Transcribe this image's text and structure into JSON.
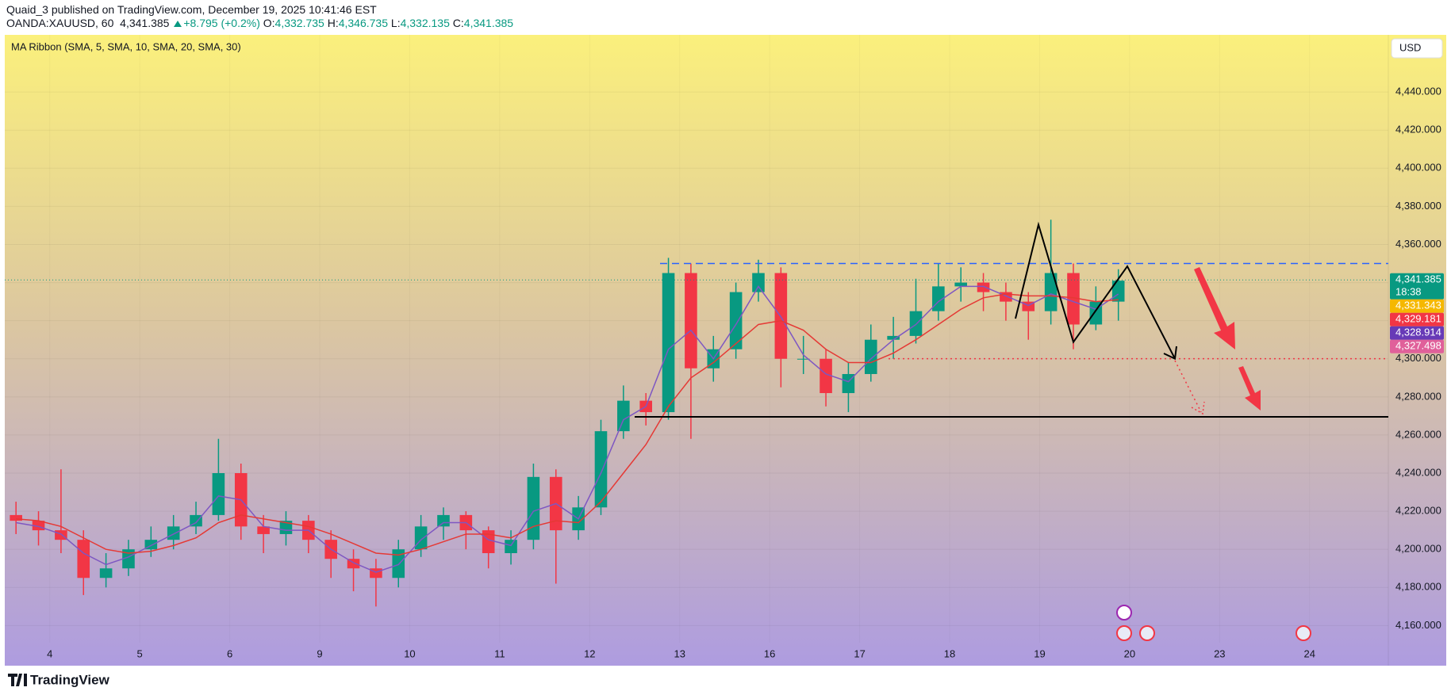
{
  "header": {
    "publisher": "Quaid_3 published on TradingView.com, December 19, 2025 10:41:46 EST",
    "symbol": "OANDA:XAUUSD, 60",
    "last": "4,341.385",
    "change": "+8.795 (+0.2%)",
    "o_label": "O:",
    "open": "4,332.735",
    "h_label": "H:",
    "high": "4,346.735",
    "l_label": "L:",
    "low": "4,332.135",
    "c_label": "C:",
    "close": "4,341.385"
  },
  "indicator": "MA Ribbon (SMA, 5, SMA, 10, SMA, 20, SMA, 30)",
  "currency": "USD",
  "countdown": "18:38",
  "brand": "TradingView",
  "chart_data": {
    "type": "candlestick",
    "x": [
      -9,
      -3,
      3,
      9,
      15,
      21,
      27,
      33,
      39,
      45,
      51,
      57,
      63,
      69,
      75,
      81,
      87,
      93,
      99,
      105,
      111,
      117,
      123,
      129,
      135,
      141,
      147,
      153,
      159,
      165,
      171,
      177,
      183,
      189,
      195,
      201,
      207,
      213,
      219,
      225,
      231,
      237,
      243,
      249,
      255,
      261,
      267,
      273,
      279,
      285
    ],
    "open": [
      4218,
      4215,
      4210,
      4205,
      4185,
      4190,
      4200,
      4205,
      4212,
      4218,
      4240,
      4212,
      4208,
      4215,
      4205,
      4195,
      4190,
      4185,
      4200,
      4212,
      4218,
      4210,
      4198,
      4205,
      4238,
      4210,
      4222,
      4262,
      4278,
      4272,
      4345,
      4295,
      4305,
      4335,
      4345,
      4300,
      4300,
      4282,
      4292,
      4310,
      4312,
      4325,
      4338,
      4340,
      4335,
      4330,
      4325,
      4345,
      4318,
      4330
    ],
    "high": [
      4225,
      4220,
      4242,
      4210,
      4198,
      4205,
      4212,
      4218,
      4225,
      4258,
      4245,
      4218,
      4220,
      4218,
      4210,
      4200,
      4195,
      4205,
      4218,
      4222,
      4220,
      4212,
      4210,
      4245,
      4242,
      4228,
      4268,
      4286,
      4282,
      4353,
      4350,
      4312,
      4340,
      4352,
      4348,
      4312,
      4305,
      4298,
      4318,
      4322,
      4342,
      4350,
      4348,
      4345,
      4340,
      4335,
      4373,
      4350,
      4338,
      4347
    ],
    "low": [
      4208,
      4202,
      4198,
      4176,
      4180,
      4186,
      4196,
      4200,
      4208,
      4215,
      4205,
      4198,
      4202,
      4198,
      4185,
      4178,
      4170,
      4180,
      4196,
      4205,
      4200,
      4190,
      4192,
      4200,
      4182,
      4205,
      4218,
      4258,
      4265,
      4268,
      4258,
      4288,
      4300,
      4330,
      4285,
      4292,
      4275,
      4272,
      4288,
      4300,
      4308,
      4320,
      4330,
      4325,
      4320,
      4310,
      4318,
      4305,
      4315,
      4320
    ],
    "close": [
      4215,
      4210,
      4205,
      4185,
      4190,
      4200,
      4205,
      4212,
      4218,
      4240,
      4212,
      4208,
      4215,
      4205,
      4195,
      4190,
      4185,
      4200,
      4212,
      4218,
      4210,
      4198,
      4205,
      4238,
      4210,
      4222,
      4262,
      4278,
      4272,
      4345,
      4295,
      4305,
      4335,
      4345,
      4300,
      4300,
      4282,
      4292,
      4310,
      4312,
      4325,
      4338,
      4340,
      4335,
      4330,
      4325,
      4345,
      4318,
      4330,
      4341
    ],
    "up_color": "#089981",
    "down_color": "#f23645",
    "ma_lines": [
      {
        "color": "#7e57c2",
        "values": [
          4214,
          4212,
          4208,
          4198,
          4192,
          4196,
          4202,
          4208,
          4214,
          4228,
          4226,
          4212,
          4210,
          4210,
          4200,
          4193,
          4188,
          4192,
          4205,
          4214,
          4214,
          4205,
          4202,
          4220,
          4224,
          4216,
          4240,
          4268,
          4275,
          4305,
          4315,
          4300,
          4318,
          4338,
          4322,
          4302,
          4292,
          4288,
          4300,
          4310,
          4318,
          4330,
          4338,
          4338,
          4333,
          4328,
          4334,
          4330,
          4326,
          4334
        ]
      },
      {
        "color": "#e53935",
        "values": [
          4216,
          4215,
          4212,
          4206,
          4200,
          4198,
          4199,
          4202,
          4206,
          4214,
          4218,
          4216,
          4214,
          4212,
          4208,
          4203,
          4198,
          4197,
          4200,
          4204,
          4208,
          4208,
          4206,
          4212,
          4215,
          4214,
          4225,
          4240,
          4255,
          4275,
          4290,
          4298,
          4308,
          4318,
          4320,
          4315,
          4305,
          4298,
          4298,
          4303,
          4310,
          4318,
          4326,
          4332,
          4334,
          4333,
          4333,
          4332,
          4330,
          4331
        ]
      }
    ],
    "price_tags": [
      {
        "value": 4341.385,
        "label": "4,341.385",
        "color": "#089981"
      },
      {
        "value": 4331.343,
        "label": "4,331.343",
        "color": "#f5b800"
      },
      {
        "value": 4329.181,
        "label": "4,329.181",
        "color": "#f23645"
      },
      {
        "value": 4328.914,
        "label": "4,328.914",
        "color": "#673ab7"
      },
      {
        "value": 4327.498,
        "label": "4,327.498",
        "color": "#e0609a"
      }
    ],
    "xlim": [
      -12,
      357
    ],
    "ylim": [
      4151,
      4470
    ],
    "xticks": [
      {
        "value": 0,
        "label": "4"
      },
      {
        "value": 24,
        "label": "5"
      },
      {
        "value": 48,
        "label": "6"
      },
      {
        "value": 72,
        "label": "9"
      },
      {
        "value": 96,
        "label": "10"
      },
      {
        "value": 120,
        "label": "11"
      },
      {
        "value": 144,
        "label": "12"
      },
      {
        "value": 168,
        "label": "13"
      },
      {
        "value": 192,
        "label": "16"
      },
      {
        "value": 216,
        "label": "17"
      },
      {
        "value": 240,
        "label": "18"
      },
      {
        "value": 264,
        "label": "19"
      },
      {
        "value": 288,
        "label": "20"
      },
      {
        "value": 312,
        "label": "23"
      },
      {
        "value": 336,
        "label": "24"
      }
    ],
    "yticks": [
      {
        "value": 4160,
        "label": "4,160.000"
      },
      {
        "value": 4180,
        "label": "4,180.000"
      },
      {
        "value": 4200,
        "label": "4,200.000"
      },
      {
        "value": 4220,
        "label": "4,220.000"
      },
      {
        "value": 4240,
        "label": "4,240.000"
      },
      {
        "value": 4260,
        "label": "4,260.000"
      },
      {
        "value": 4280,
        "label": "4,280.000"
      },
      {
        "value": 4300,
        "label": "4,300.000"
      },
      {
        "value": 4320,
        "label": "4,320.000"
      },
      {
        "value": 4340,
        "label": "4,340.000"
      },
      {
        "value": 4360,
        "label": "4,360.000"
      },
      {
        "value": 4380,
        "label": "4,380.000"
      },
      {
        "value": 4400,
        "label": "4,400.000"
      },
      {
        "value": 4420,
        "label": "4,420.000"
      },
      {
        "value": 4440,
        "label": "4,440.000"
      }
    ],
    "grid": true
  }
}
